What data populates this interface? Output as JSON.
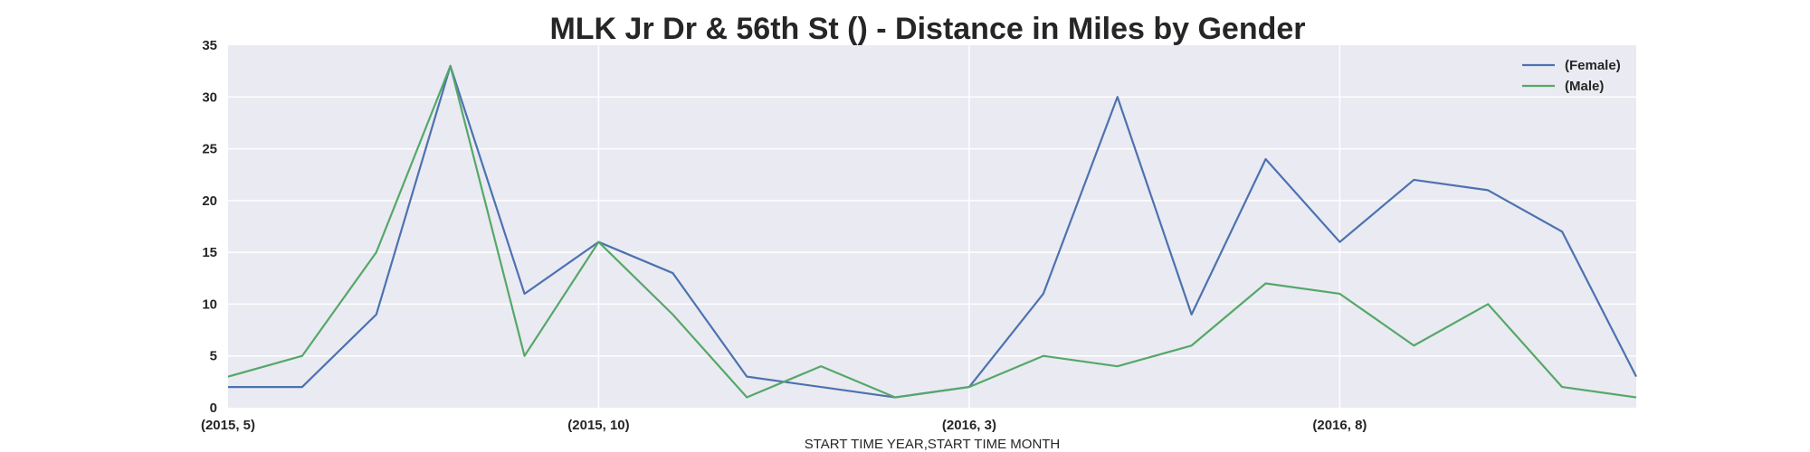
{
  "chart_data": {
    "type": "line",
    "title": "MLK Jr Dr & 56th St () - Distance in Miles by Gender",
    "xlabel": "START TIME YEAR,START TIME MONTH",
    "ylabel": "",
    "x": [
      "(2015, 5)",
      "(2015, 6)",
      "(2015, 7)",
      "(2015, 8)",
      "(2015, 9)",
      "(2015, 10)",
      "(2015, 11)",
      "(2015, 12)",
      "(2016, 1)",
      "(2016, 2)",
      "(2016, 3)",
      "(2016, 4)",
      "(2016, 5)",
      "(2016, 6)",
      "(2016, 7)",
      "(2016, 8)",
      "(2016, 9)",
      "(2016, 10)",
      "(2016, 11)",
      "(2016, 12)"
    ],
    "x_tick_labels": [
      "(2015, 5)",
      "(2015, 10)",
      "(2016, 3)",
      "(2016, 8)"
    ],
    "ylim": [
      0,
      35
    ],
    "y_ticks": [
      0,
      5,
      10,
      15,
      20,
      25,
      30,
      35
    ],
    "grid": true,
    "legend_position": "top-right",
    "series": [
      {
        "name": "(Female)",
        "color": "#4c72b0",
        "values": [
          2,
          2,
          9,
          33,
          11,
          16,
          13,
          3,
          2,
          1,
          2,
          11,
          30,
          9,
          24,
          16,
          22,
          21,
          17,
          3
        ]
      },
      {
        "name": "(Male)",
        "color": "#55a868",
        "values": [
          3,
          5,
          15,
          33,
          5,
          16,
          9,
          1,
          4,
          1,
          2,
          5,
          4,
          6,
          12,
          11,
          6,
          10,
          2,
          1
        ]
      }
    ]
  }
}
